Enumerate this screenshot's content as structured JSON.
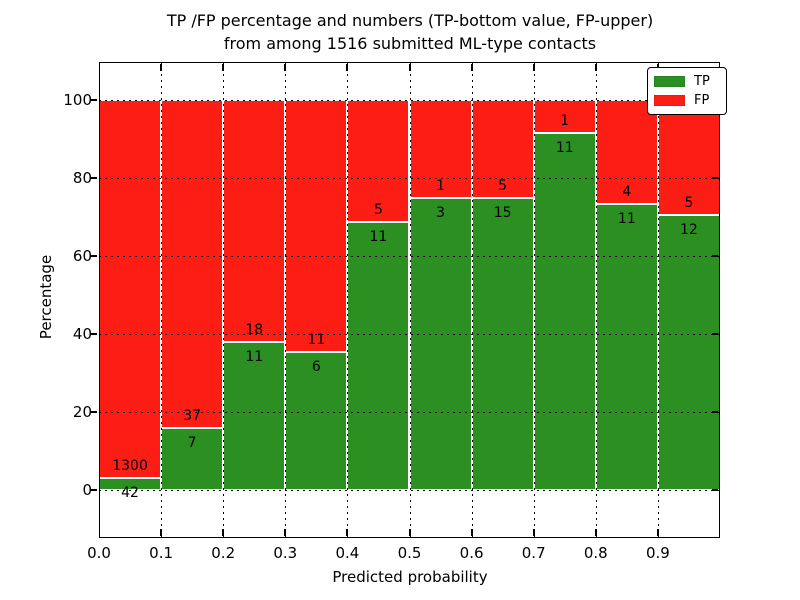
{
  "title": {
    "line1": "TP /FP percentage and numbers (TP-bottom value, FP-upper)",
    "line2": "from among 1516 submitted ML-type contacts"
  },
  "axes": {
    "xlabel": "Predicted probability",
    "ylabel": "Percentage",
    "x_tick_labels": [
      "0.0",
      "0.1",
      "0.2",
      "0.3",
      "0.4",
      "0.5",
      "0.6",
      "0.7",
      "0.8",
      "0.9"
    ],
    "y_tick_labels": [
      "0",
      "20",
      "40",
      "60",
      "80",
      "100"
    ]
  },
  "legend": {
    "items": [
      {
        "label": "TP",
        "color": "#2b8f22"
      },
      {
        "label": "FP",
        "color": "#fc1e14"
      }
    ]
  },
  "colors": {
    "tp_green": "#2b8f22",
    "fp_red": "#fc1e14",
    "grid": "#000000",
    "background": "#ffffff"
  },
  "total_contacts": "1516",
  "chart_data": {
    "type": "bar",
    "stacked": true,
    "title": "TP /FP percentage and numbers (TP-bottom value, FP-upper) from among 1516 submitted ML-type contacts",
    "xlabel": "Predicted probability",
    "ylabel": "Percentage",
    "bin_starts": [
      0.0,
      0.1,
      0.2,
      0.3,
      0.4,
      0.5,
      0.6,
      0.7,
      0.8,
      0.9
    ],
    "bin_width": 0.1,
    "series": [
      {
        "name": "TP",
        "counts": [
          42,
          7,
          11,
          6,
          11,
          3,
          15,
          11,
          11,
          12
        ]
      },
      {
        "name": "FP",
        "counts": [
          1300,
          37,
          18,
          11,
          5,
          1,
          5,
          1,
          4,
          5
        ]
      }
    ],
    "note": "Bars show TP percentage per bin = tp/(tp+fp)*100, stacked with FP to 100%; numeric labels on bars are raw counts (TP below boundary, FP above)",
    "tp_percent": [
      3.13,
      15.91,
      37.93,
      35.29,
      68.75,
      75.0,
      75.0,
      91.67,
      73.33,
      70.59
    ],
    "xlim": [
      0.0,
      1.0
    ],
    "ylim": [
      -12,
      110
    ],
    "yticks": [
      0,
      20,
      40,
      60,
      80,
      100
    ],
    "xticks": [
      0.0,
      0.1,
      0.2,
      0.3,
      0.4,
      0.5,
      0.6,
      0.7,
      0.8,
      0.9
    ],
    "grid": true,
    "grid_style": "dotted",
    "legend_position": "upper right"
  }
}
